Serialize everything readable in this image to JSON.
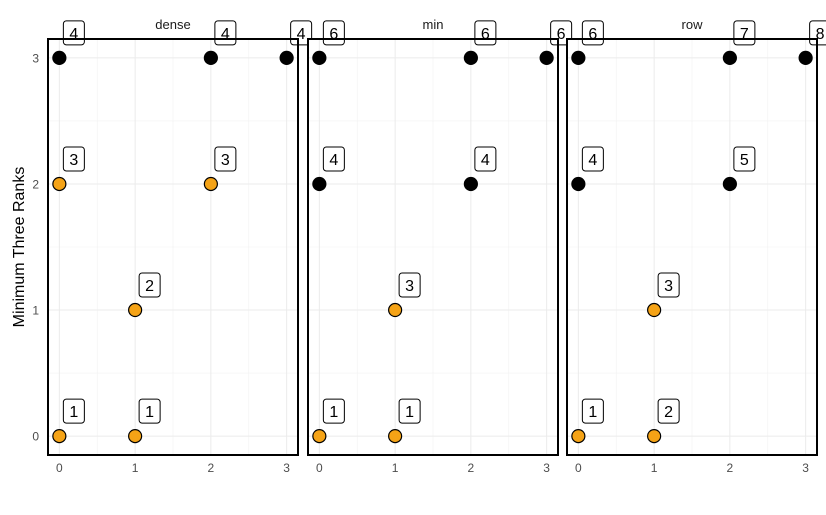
{
  "chart_data": {
    "type": "scatter",
    "ylabel": "Minimum Three Ranks",
    "xlabel": "",
    "xlim": [
      -0.15,
      3.15
    ],
    "ylim": [
      -0.15,
      3.15
    ],
    "x_ticks": [
      "0",
      "1",
      "2",
      "3"
    ],
    "y_ticks": [
      "0",
      "1",
      "2",
      "3"
    ],
    "grid": true,
    "colors": {
      "selected": "#f5a316",
      "other": "#000000",
      "label_box": "#ffffff",
      "grid": "#ebebeb"
    },
    "panels": [
      {
        "title": "dense",
        "points": [
          {
            "x": 0,
            "y": 0,
            "label": "1",
            "selected": true
          },
          {
            "x": 1,
            "y": 0,
            "label": "1",
            "selected": true
          },
          {
            "x": 1,
            "y": 1,
            "label": "2",
            "selected": true
          },
          {
            "x": 0,
            "y": 2,
            "label": "3",
            "selected": true
          },
          {
            "x": 2,
            "y": 2,
            "label": "3",
            "selected": true
          },
          {
            "x": 0,
            "y": 3,
            "label": "4",
            "selected": false
          },
          {
            "x": 2,
            "y": 3,
            "label": "4",
            "selected": false
          },
          {
            "x": 3,
            "y": 3,
            "label": "4",
            "selected": false
          }
        ]
      },
      {
        "title": "min",
        "points": [
          {
            "x": 0,
            "y": 0,
            "label": "1",
            "selected": true
          },
          {
            "x": 1,
            "y": 0,
            "label": "1",
            "selected": true
          },
          {
            "x": 1,
            "y": 1,
            "label": "3",
            "selected": true
          },
          {
            "x": 0,
            "y": 2,
            "label": "4",
            "selected": false
          },
          {
            "x": 2,
            "y": 2,
            "label": "4",
            "selected": false
          },
          {
            "x": 0,
            "y": 3,
            "label": "6",
            "selected": false
          },
          {
            "x": 2,
            "y": 3,
            "label": "6",
            "selected": false
          },
          {
            "x": 3,
            "y": 3,
            "label": "6",
            "selected": false
          }
        ]
      },
      {
        "title": "row",
        "points": [
          {
            "x": 0,
            "y": 0,
            "label": "1",
            "selected": true
          },
          {
            "x": 1,
            "y": 0,
            "label": "2",
            "selected": true
          },
          {
            "x": 1,
            "y": 1,
            "label": "3",
            "selected": true
          },
          {
            "x": 0,
            "y": 2,
            "label": "4",
            "selected": false
          },
          {
            "x": 2,
            "y": 2,
            "label": "5",
            "selected": false
          },
          {
            "x": 0,
            "y": 3,
            "label": "6",
            "selected": false
          },
          {
            "x": 2,
            "y": 3,
            "label": "7",
            "selected": false
          },
          {
            "x": 3,
            "y": 3,
            "label": "8",
            "selected": false
          }
        ]
      }
    ]
  }
}
